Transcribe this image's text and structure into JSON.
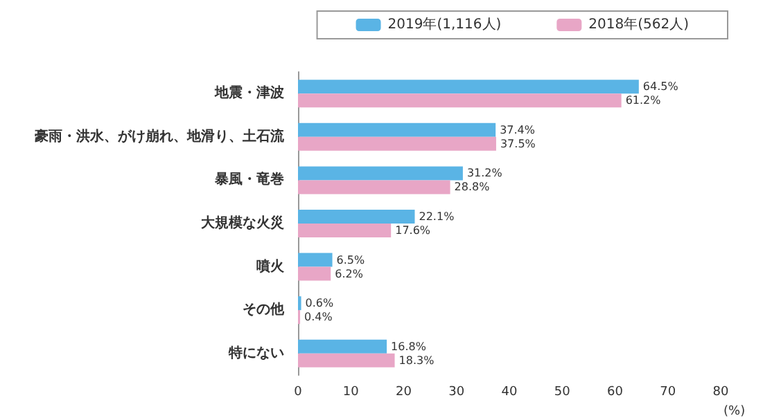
{
  "chart_data": {
    "type": "bar",
    "orientation": "horizontal",
    "categories": [
      "地震・津波",
      "豪雨・洪水、がけ崩れ、地滑り、土石流",
      "暴風・竜巻",
      "大規模な火災",
      "噴火",
      "その他",
      "特にない"
    ],
    "series": [
      {
        "name": "2019年(1,116人)",
        "color": "#5ab4e5",
        "values": [
          64.5,
          37.4,
          31.2,
          22.1,
          6.5,
          0.6,
          16.8
        ],
        "value_labels": [
          "64.5%",
          "37.4%",
          "31.2%",
          "22.1%",
          "6.5%",
          "0.6%",
          "16.8%"
        ]
      },
      {
        "name": "2018年(562人)",
        "color": "#e8a6c6",
        "values": [
          61.2,
          37.5,
          28.8,
          17.6,
          6.2,
          0.4,
          18.3
        ],
        "value_labels": [
          "61.2%",
          "37.5%",
          "28.8%",
          "17.6%",
          "6.2%",
          "0.4%",
          "18.3%"
        ]
      }
    ],
    "xlabel": "(%)",
    "xlim": [
      0,
      80
    ],
    "xticks": [
      0,
      10,
      20,
      30,
      40,
      50,
      60,
      70,
      80
    ],
    "grid": false,
    "legend": "top right"
  }
}
